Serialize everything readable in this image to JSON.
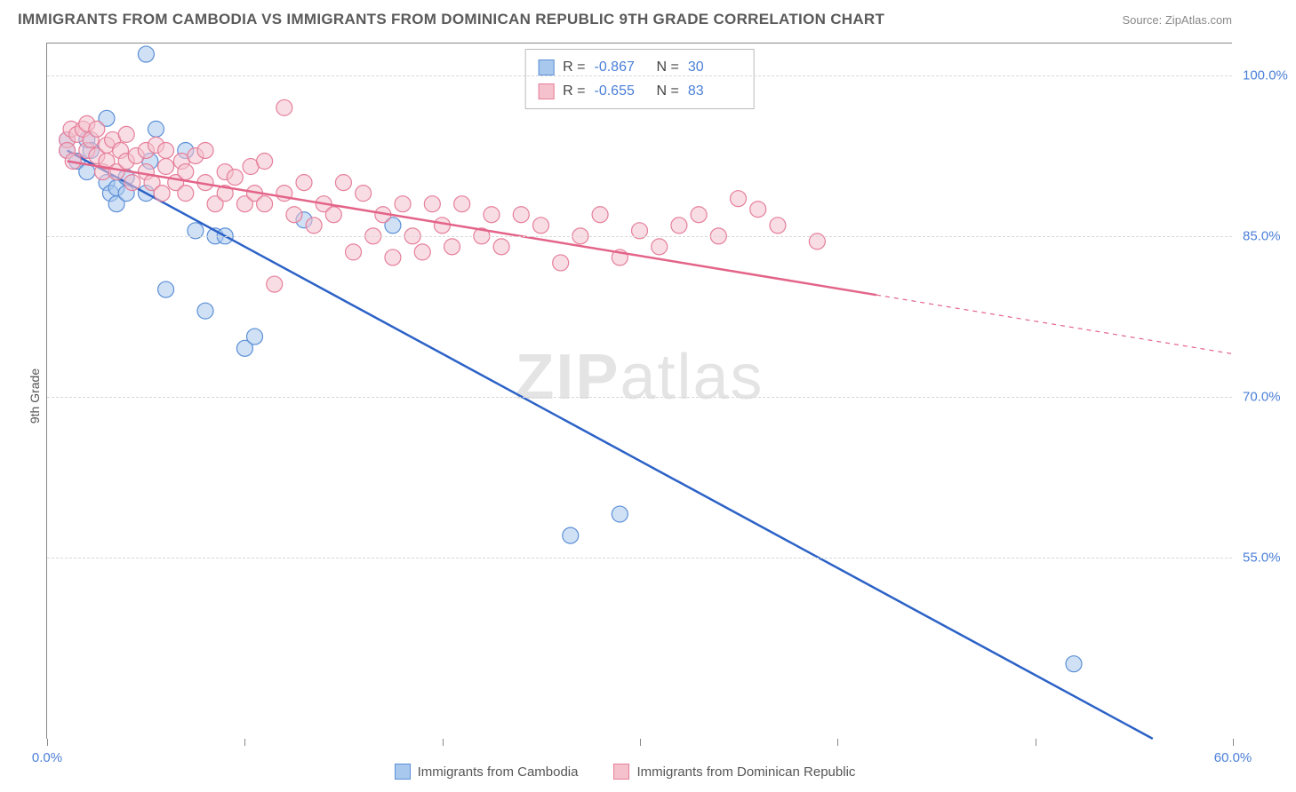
{
  "title": "IMMIGRANTS FROM CAMBODIA VS IMMIGRANTS FROM DOMINICAN REPUBLIC 9TH GRADE CORRELATION CHART",
  "source": "Source: ZipAtlas.com",
  "ylabel": "9th Grade",
  "watermark_bold": "ZIP",
  "watermark_rest": "atlas",
  "chart": {
    "type": "scatter",
    "xlim": [
      0,
      60
    ],
    "ylim": [
      38,
      103
    ],
    "x_ticks": [
      0,
      10,
      20,
      30,
      40,
      50,
      60
    ],
    "x_tick_labels": [
      "0.0%",
      "",
      "",
      "",
      "",
      "",
      "60.0%"
    ],
    "y_ticks": [
      55,
      70,
      85,
      100
    ],
    "y_tick_labels": [
      "55.0%",
      "70.0%",
      "85.0%",
      "100.0%"
    ],
    "grid_color": "#e0e0e0",
    "background_color": "#ffffff",
    "axis_color": "#888888",
    "tick_label_color": "#4a7fd8",
    "marker_radius": 9,
    "marker_opacity": 0.55,
    "line_width": 2.5,
    "series": [
      {
        "name": "Immigrants from Cambodia",
        "color_fill": "#a9c8ee",
        "color_stroke": "#5b8fd6",
        "line_color": "#2c62c7",
        "R": -0.867,
        "N": 30,
        "trend": {
          "x1": 1,
          "y1": 93,
          "x2": 56,
          "y2": 38,
          "dash_from_x": null
        },
        "points": [
          [
            1,
            93
          ],
          [
            1,
            94
          ],
          [
            1.5,
            92
          ],
          [
            2,
            94
          ],
          [
            2,
            91
          ],
          [
            2.2,
            93
          ],
          [
            3,
            96
          ],
          [
            3,
            90
          ],
          [
            3.2,
            89
          ],
          [
            3.5,
            88
          ],
          [
            3.5,
            89.5
          ],
          [
            4,
            89
          ],
          [
            4,
            90.5
          ],
          [
            5,
            102
          ],
          [
            5,
            89
          ],
          [
            5.2,
            92
          ],
          [
            5.5,
            95
          ],
          [
            6,
            80
          ],
          [
            7,
            93
          ],
          [
            7.5,
            85.5
          ],
          [
            8,
            78
          ],
          [
            8.5,
            85
          ],
          [
            9,
            85
          ],
          [
            10,
            74.5
          ],
          [
            10.5,
            75.6
          ],
          [
            13,
            86.5
          ],
          [
            17.5,
            86
          ],
          [
            26.5,
            57
          ],
          [
            29,
            59
          ],
          [
            52,
            45
          ]
        ]
      },
      {
        "name": "Immigrants from Dominican Republic",
        "color_fill": "#f4c1cd",
        "color_stroke": "#e57f9a",
        "line_color": "#e36488",
        "R": -0.655,
        "N": 83,
        "trend": {
          "x1": 1,
          "y1": 92,
          "x2": 60,
          "y2": 74,
          "dash_from_x": 42
        },
        "points": [
          [
            1,
            94
          ],
          [
            1,
            93
          ],
          [
            1.2,
            95
          ],
          [
            1.3,
            92
          ],
          [
            1.5,
            94.5
          ],
          [
            1.8,
            95
          ],
          [
            2,
            93
          ],
          [
            2,
            95.5
          ],
          [
            2.2,
            94
          ],
          [
            2.5,
            92.5
          ],
          [
            2.5,
            95
          ],
          [
            2.8,
            91
          ],
          [
            3,
            93.5
          ],
          [
            3,
            92
          ],
          [
            3.3,
            94
          ],
          [
            3.5,
            91
          ],
          [
            3.7,
            93
          ],
          [
            4,
            92
          ],
          [
            4,
            94.5
          ],
          [
            4.3,
            90
          ],
          [
            4.5,
            92.5
          ],
          [
            5,
            93
          ],
          [
            5,
            91
          ],
          [
            5.3,
            90
          ],
          [
            5.5,
            93.5
          ],
          [
            5.8,
            89
          ],
          [
            6,
            91.5
          ],
          [
            6,
            93
          ],
          [
            6.5,
            90
          ],
          [
            6.8,
            92
          ],
          [
            7,
            89
          ],
          [
            7,
            91
          ],
          [
            7.5,
            92.5
          ],
          [
            8,
            90
          ],
          [
            8,
            93
          ],
          [
            8.5,
            88
          ],
          [
            9,
            91
          ],
          [
            9,
            89
          ],
          [
            9.5,
            90.5
          ],
          [
            10,
            88
          ],
          [
            10.3,
            91.5
          ],
          [
            10.5,
            89
          ],
          [
            11,
            88
          ],
          [
            11,
            92
          ],
          [
            11.5,
            80.5
          ],
          [
            12,
            97
          ],
          [
            12,
            89
          ],
          [
            12.5,
            87
          ],
          [
            13,
            90
          ],
          [
            13.5,
            86
          ],
          [
            14,
            88
          ],
          [
            14.5,
            87
          ],
          [
            15,
            90
          ],
          [
            15.5,
            83.5
          ],
          [
            16,
            89
          ],
          [
            16.5,
            85
          ],
          [
            17,
            87
          ],
          [
            17.5,
            83
          ],
          [
            18,
            88
          ],
          [
            18.5,
            85
          ],
          [
            19,
            83.5
          ],
          [
            19.5,
            88
          ],
          [
            20,
            86
          ],
          [
            20.5,
            84
          ],
          [
            21,
            88
          ],
          [
            22,
            85
          ],
          [
            22.5,
            87
          ],
          [
            23,
            84
          ],
          [
            24,
            87
          ],
          [
            25,
            86
          ],
          [
            26,
            82.5
          ],
          [
            27,
            85
          ],
          [
            28,
            87
          ],
          [
            29,
            83
          ],
          [
            30,
            85.5
          ],
          [
            31,
            84
          ],
          [
            32,
            86
          ],
          [
            33,
            87
          ],
          [
            34,
            85
          ],
          [
            35,
            88.5
          ],
          [
            36,
            87.5
          ],
          [
            37,
            86
          ],
          [
            39,
            84.5
          ]
        ]
      }
    ]
  },
  "bottom_legend": [
    {
      "label": "Immigrants from Cambodia",
      "fill": "#a9c8ee",
      "stroke": "#5b8fd6"
    },
    {
      "label": "Immigrants from Dominican Republic",
      "fill": "#f4c1cd",
      "stroke": "#e57f9a"
    }
  ]
}
